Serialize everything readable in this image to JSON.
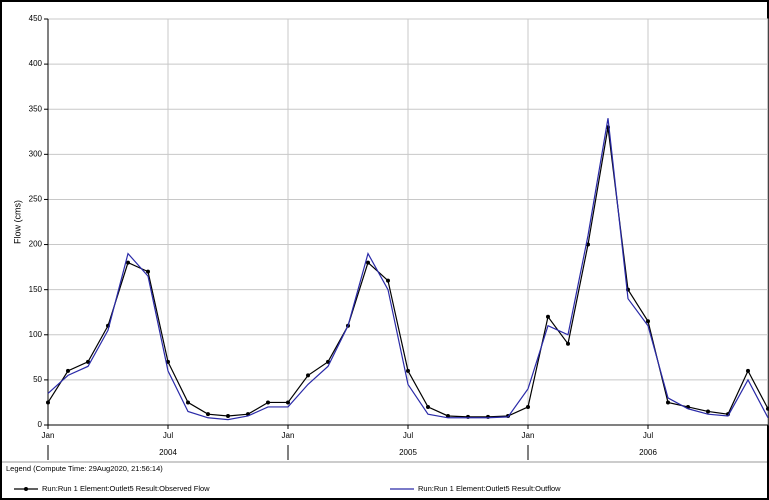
{
  "chart_data": {
    "type": "line",
    "y_label": "Flow (cms)",
    "x": [
      "2004-01",
      "2004-02",
      "2004-03",
      "2004-04",
      "2004-05",
      "2004-06",
      "2004-07",
      "2004-08",
      "2004-09",
      "2004-10",
      "2004-11",
      "2004-12",
      "2005-01",
      "2005-02",
      "2005-03",
      "2005-04",
      "2005-05",
      "2005-06",
      "2005-07",
      "2005-08",
      "2005-09",
      "2005-10",
      "2005-11",
      "2005-12",
      "2006-01",
      "2006-02",
      "2006-03",
      "2006-04",
      "2006-05",
      "2006-06",
      "2006-07",
      "2006-08",
      "2006-09",
      "2006-10",
      "2006-11",
      "2006-12",
      "2007-01"
    ],
    "series": [
      {
        "name": "Run:Run 1 Element:Outlet5 Result:Observed Flow",
        "color": "#000000",
        "markers": true,
        "values": [
          25,
          60,
          70,
          110,
          180,
          170,
          70,
          25,
          12,
          10,
          12,
          25,
          25,
          55,
          70,
          110,
          180,
          160,
          60,
          20,
          10,
          9,
          9,
          10,
          20,
          120,
          90,
          200,
          330,
          150,
          115,
          25,
          20,
          15,
          12,
          60,
          18
        ]
      },
      {
        "name": "Run:Run 1 Element:Outlet5 Result:Outflow",
        "color": "#2a2aa8",
        "markers": false,
        "values": [
          35,
          55,
          65,
          105,
          190,
          165,
          60,
          15,
          8,
          6,
          10,
          20,
          20,
          45,
          65,
          110,
          190,
          150,
          45,
          12,
          8,
          8,
          8,
          9,
          40,
          110,
          100,
          210,
          340,
          140,
          110,
          30,
          18,
          12,
          10,
          50,
          8
        ]
      }
    ],
    "xlim": [
      "2004-01",
      "2007-01"
    ],
    "xticks": [
      {
        "value": "2004-01",
        "label": "Jan"
      },
      {
        "value": "2004-07",
        "label": "Jul"
      },
      {
        "value": "2005-01",
        "label": "Jan"
      },
      {
        "value": "2005-07",
        "label": "Jul"
      },
      {
        "value": "2006-01",
        "label": "Jan"
      },
      {
        "value": "2006-07",
        "label": "Jul"
      }
    ],
    "x_year_labels": [
      "2004",
      "2005",
      "2006"
    ],
    "ylim": [
      0,
      450
    ],
    "yticks": [
      0,
      50,
      100,
      150,
      200,
      250,
      300,
      350,
      400,
      450
    ],
    "grid": true,
    "legend_title": "Legend (Compute Time: 29Aug2020, 21:56:14)"
  }
}
